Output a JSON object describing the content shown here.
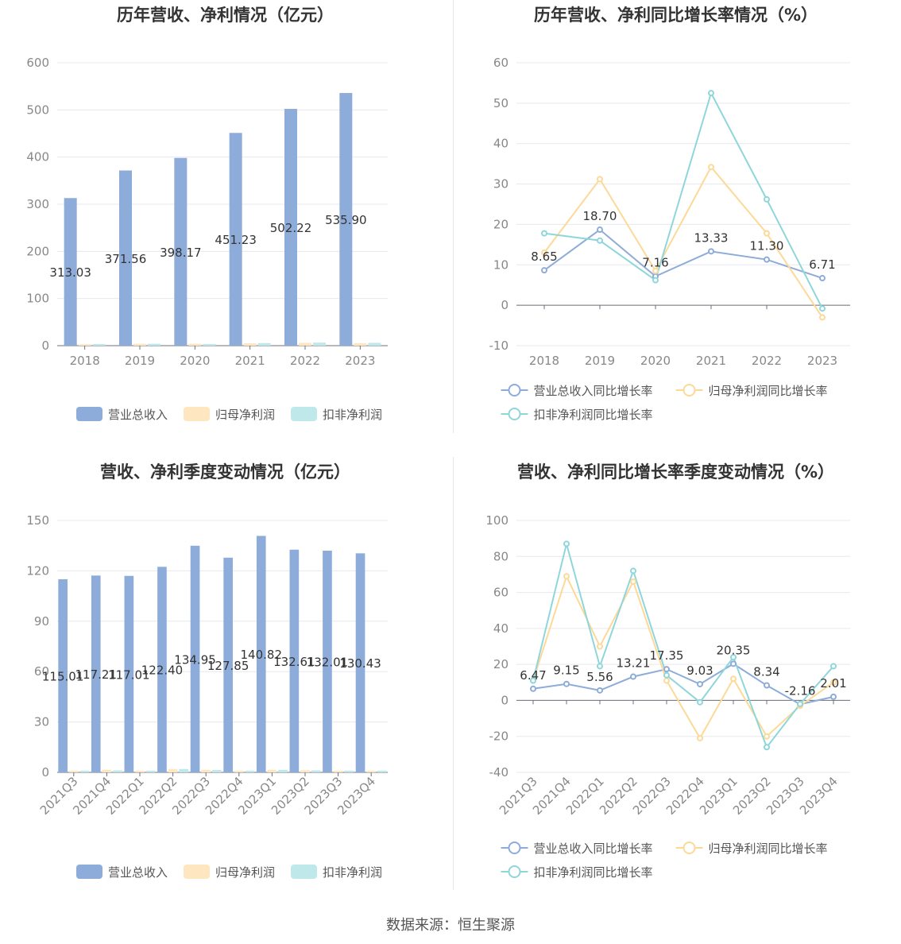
{
  "source": "数据来源：恒生聚源",
  "colors": {
    "revenue": "#8eacda",
    "net_profit": "#fde6c0",
    "deducted_profit": "#bfe8ea",
    "revenue_line": "#8eacda",
    "net_profit_line": "#fdd998",
    "deducted_profit_line": "#8fd6da"
  },
  "chart_data": [
    {
      "id": "annual-bar",
      "type": "bar",
      "title": "历年营收、净利情况（亿元）",
      "categories": [
        "2018",
        "2019",
        "2020",
        "2021",
        "2022",
        "2023"
      ],
      "ylim": [
        0,
        600
      ],
      "yticks": [
        0,
        100,
        200,
        300,
        400,
        500,
        600
      ],
      "series": [
        {
          "name": "营业总收入",
          "values": [
            313.03,
            371.56,
            398.17,
            451.23,
            502.22,
            535.9
          ],
          "labels": [
            "313.03",
            "371.56",
            "398.17",
            "451.23",
            "502.22",
            "535.90"
          ]
        },
        {
          "name": "归母净利润",
          "values": [
            3,
            4,
            4,
            5,
            6,
            5.5
          ]
        },
        {
          "name": "扣非净利润",
          "values": [
            3.5,
            4,
            3.5,
            5.5,
            6.5,
            6
          ]
        }
      ],
      "legend": "bottom"
    },
    {
      "id": "annual-line",
      "type": "line",
      "title": "历年营收、净利同比增长率情况（%）",
      "categories": [
        "2018",
        "2019",
        "2020",
        "2021",
        "2022",
        "2023"
      ],
      "ylim": [
        -10,
        60
      ],
      "yticks": [
        -10,
        0,
        10,
        20,
        30,
        40,
        50,
        60
      ],
      "series": [
        {
          "name": "营业总收入同比增长率",
          "values": [
            8.65,
            18.7,
            7.16,
            13.33,
            11.3,
            6.71
          ],
          "labels": [
            "8.65",
            "18.70",
            "7.16",
            "13.33",
            "11.30",
            "6.71"
          ]
        },
        {
          "name": "归母净利润同比增长率",
          "values": [
            13,
            31.2,
            8.5,
            34.2,
            17.8,
            -3
          ]
        },
        {
          "name": "扣非净利润同比增长率",
          "values": [
            17.8,
            16,
            6.2,
            52.5,
            26.2,
            -0.8
          ]
        }
      ],
      "legend": "bottom"
    },
    {
      "id": "quarter-bar",
      "type": "bar",
      "title": "营收、净利季度变动情况（亿元）",
      "categories": [
        "2021Q3",
        "2021Q4",
        "2022Q1",
        "2022Q2",
        "2022Q3",
        "2022Q4",
        "2023Q1",
        "2023Q2",
        "2023Q3",
        "2023Q4"
      ],
      "ylim": [
        0,
        150
      ],
      "yticks": [
        0,
        30,
        60,
        90,
        120,
        150
      ],
      "series": [
        {
          "name": "营业总收入",
          "values": [
            115.01,
            117.21,
            117.01,
            122.4,
            134.95,
            127.85,
            140.82,
            132.61,
            132.01,
            130.43
          ],
          "labels": [
            "115.01",
            "117.21",
            "117.01",
            "122.40",
            "134.95",
            "127.85",
            "140.82",
            "132.61",
            "132.01",
            "130.43"
          ]
        },
        {
          "name": "归母净利润",
          "values": [
            1,
            1.5,
            1,
            2,
            1.5,
            1,
            1.5,
            1.3,
            1,
            1
          ]
        },
        {
          "name": "扣非净利润",
          "values": [
            1,
            1.2,
            1,
            2,
            1.4,
            1,
            1.5,
            1.2,
            1,
            1
          ]
        }
      ],
      "legend": "bottom"
    },
    {
      "id": "quarter-line",
      "type": "line",
      "title": "营收、净利同比增长率季度变动情况（%）",
      "categories": [
        "2021Q3",
        "2021Q4",
        "2022Q1",
        "2022Q2",
        "2022Q3",
        "2022Q4",
        "2023Q1",
        "2023Q2",
        "2023Q3",
        "2023Q4"
      ],
      "ylim": [
        -40,
        100
      ],
      "yticks": [
        -40,
        -20,
        0,
        20,
        40,
        60,
        80,
        100
      ],
      "series": [
        {
          "name": "营业总收入同比增长率",
          "values": [
            6.47,
            9.15,
            5.56,
            13.21,
            17.35,
            9.03,
            20.35,
            8.34,
            -2.16,
            2.01
          ],
          "labels": [
            "6.47",
            "9.15",
            "5.56",
            "13.21",
            "17.35",
            "9.03",
            "20.35",
            "8.34",
            "-2.16",
            "2.01"
          ]
        },
        {
          "name": "归母净利润同比增长率",
          "values": [
            11,
            69,
            30,
            66,
            11,
            -21,
            12,
            -20,
            -3,
            10
          ]
        },
        {
          "name": "扣非净利润同比增长率",
          "values": [
            11,
            87,
            19,
            72,
            14,
            -1,
            24,
            -26,
            -2,
            19
          ]
        }
      ],
      "legend": "bottom"
    }
  ]
}
